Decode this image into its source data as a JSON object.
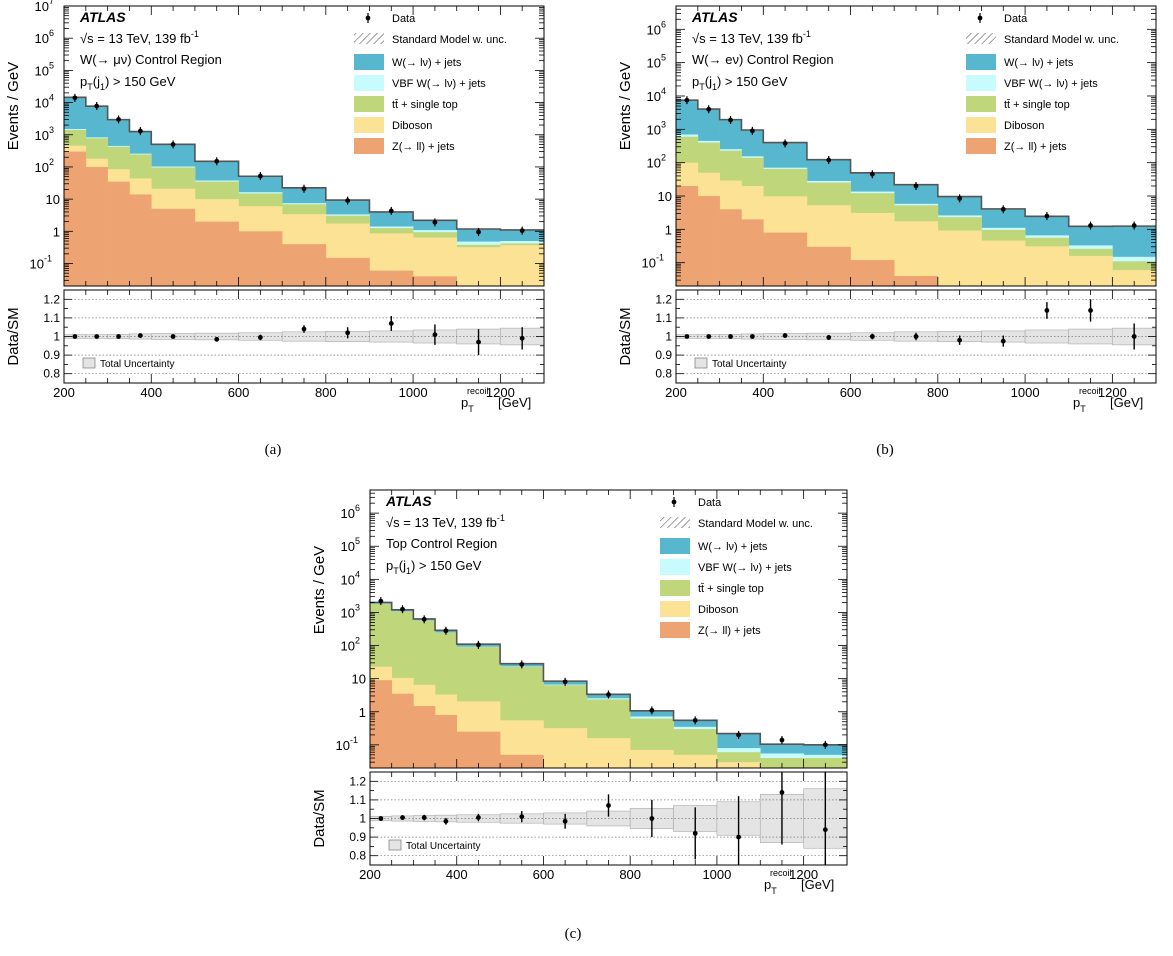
{
  "chart_data": [
    {
      "type": "stacked-histogram",
      "caption": "(a)",
      "experiment": "ATLAS",
      "energy_text": "√s = 13 TeV, 139 fb",
      "energy_sup": "-1",
      "region": "W(→ μν) Control Region",
      "cut": "p_T(j_1) > 150 GeV",
      "ylabel": "Events / GeV",
      "ratio_ylabel": "Data/SM",
      "xlabel": "p_T^recoil [GeV]",
      "xlim": [
        200,
        1300
      ],
      "ylim": [
        0.02,
        10000000
      ],
      "ratio_ylim": [
        0.75,
        1.25
      ],
      "uncertainty_label": "Total Uncertainty",
      "bin_edges": [
        200,
        250,
        300,
        350,
        400,
        500,
        600,
        700,
        800,
        900,
        1000,
        1100,
        1200,
        1300
      ],
      "series": [
        {
          "name": "Z(→ ll) + jets",
          "values": [
            300,
            100,
            35,
            14,
            5,
            2,
            1,
            0.4,
            0.15,
            0.06,
            0.04,
            0.02,
            0.02
          ]
        },
        {
          "name": "Diboson",
          "values": [
            160,
            80,
            50,
            30,
            16,
            8,
            5,
            3,
            1.6,
            0.8,
            0.6,
            0.3,
            0.35
          ]
        },
        {
          "name": "tt̄ + single top",
          "values": [
            950,
            600,
            340,
            200,
            75,
            25,
            9,
            3.5,
            1.3,
            0.4,
            0.3,
            0.06,
            0.05
          ]
        },
        {
          "name": "VBF W(→ lν) + jets",
          "values": [
            100,
            50,
            25,
            15,
            7,
            3,
            1.4,
            0.6,
            0.3,
            0.15,
            0.15,
            0.1,
            0.08
          ]
        },
        {
          "name": "W(→ lν) + jets",
          "values": [
            13000,
            6900,
            2500,
            1000,
            400,
            112,
            35,
            15,
            6,
            2.6,
            1.1,
            0.7,
            0.6
          ]
        }
      ],
      "data": {
        "x": [
          225,
          275,
          325,
          375,
          450,
          550,
          650,
          750,
          850,
          950,
          1050,
          1150,
          1250
        ],
        "values": [
          14000,
          7800,
          3000,
          1300,
          500,
          150,
          52,
          21,
          9,
          4.3,
          1.9,
          0.95,
          1.05
        ]
      },
      "ratio": {
        "values": [
          1.0,
          1.0,
          1.0,
          1.005,
          1.0,
          0.985,
          0.995,
          1.04,
          1.02,
          1.07,
          1.01,
          0.97,
          0.99
        ],
        "errors": [
          0.005,
          0.005,
          0.006,
          0.008,
          0.01,
          0.012,
          0.015,
          0.02,
          0.03,
          0.04,
          0.055,
          0.07,
          0.06
        ],
        "unc": [
          0.01,
          0.01,
          0.012,
          0.014,
          0.016,
          0.018,
          0.02,
          0.025,
          0.028,
          0.03,
          0.035,
          0.04,
          0.045
        ]
      },
      "legend": {
        "data": "Data",
        "sm": "Standard Model w. unc."
      }
    },
    {
      "type": "stacked-histogram",
      "caption": "(b)",
      "experiment": "ATLAS",
      "energy_text": "√s = 13 TeV, 139 fb",
      "energy_sup": "-1",
      "region": "W(→ eν) Control Region",
      "cut": "p_T(j_1) > 150 GeV",
      "ylabel": "Events / GeV",
      "ratio_ylabel": "Data/SM",
      "xlabel": "p_T^recoil [GeV]",
      "xlim": [
        200,
        1300
      ],
      "ylim": [
        0.02,
        5000000
      ],
      "ratio_ylim": [
        0.75,
        1.25
      ],
      "uncertainty_label": "Total Uncertainty",
      "bin_edges": [
        200,
        250,
        300,
        350,
        400,
        500,
        600,
        700,
        800,
        900,
        1000,
        1100,
        1200,
        1300
      ],
      "series": [
        {
          "name": "Z(→ ll) + jets",
          "values": [
            20,
            10,
            4,
            2,
            0.8,
            0.3,
            0.12,
            0.04,
            0.02,
            0.01,
            0.01,
            0.01,
            0.01
          ]
        },
        {
          "name": "Diboson",
          "values": [
            80,
            40,
            25,
            18,
            9,
            5,
            3,
            1.7,
            0.9,
            0.45,
            0.3,
            0.15,
            0.05
          ]
        },
        {
          "name": "tt̄ + single top",
          "values": [
            500,
            350,
            200,
            120,
            55,
            20,
            9,
            3.5,
            1.4,
            0.5,
            0.25,
            0.1,
            0.05
          ]
        },
        {
          "name": "VBF W(→ lν) + jets",
          "values": [
            100,
            50,
            25,
            15,
            6,
            3,
            1.5,
            0.6,
            0.3,
            0.15,
            0.1,
            0.07,
            0.04
          ]
        },
        {
          "name": "W(→ lν) + jets",
          "values": [
            6800,
            3600,
            1700,
            800,
            330,
            95,
            36,
            16,
            7,
            3,
            1.8,
            0.9,
            1.1
          ]
        }
      ],
      "data": {
        "x": [
          225,
          275,
          325,
          375,
          450,
          550,
          650,
          750,
          850,
          950,
          1050,
          1150,
          1250
        ],
        "values": [
          7500,
          4000,
          1900,
          900,
          380,
          120,
          45,
          20,
          8.5,
          4.0,
          2.5,
          1.3,
          1.3
        ]
      },
      "ratio": {
        "values": [
          1.0,
          1.0,
          1.0,
          1.0,
          1.005,
          0.995,
          1.0,
          1.0,
          0.98,
          0.975,
          1.14,
          1.14,
          1.0
        ],
        "errors": [
          0.005,
          0.006,
          0.007,
          0.008,
          0.01,
          0.012,
          0.015,
          0.02,
          0.025,
          0.03,
          0.045,
          0.06,
          0.07
        ],
        "unc": [
          0.01,
          0.01,
          0.012,
          0.014,
          0.016,
          0.018,
          0.02,
          0.025,
          0.028,
          0.03,
          0.035,
          0.04,
          0.045
        ]
      },
      "legend": {
        "data": "Data",
        "sm": "Standard Model w. unc."
      }
    },
    {
      "type": "stacked-histogram",
      "caption": "(c)",
      "experiment": "ATLAS",
      "energy_text": "√s = 13 TeV, 139 fb",
      "energy_sup": "-1",
      "region": "Top Control Region",
      "cut": "p_T(j_1) > 150 GeV",
      "ylabel": "Events / GeV",
      "ratio_ylabel": "Data/SM",
      "xlabel": "p_T^recoil [GeV]",
      "xlim": [
        200,
        1300
      ],
      "ylim": [
        0.02,
        5000000
      ],
      "ratio_ylim": [
        0.75,
        1.25
      ],
      "uncertainty_label": "Total Uncertainty",
      "bin_edges": [
        200,
        250,
        300,
        350,
        400,
        500,
        600,
        700,
        800,
        900,
        1000,
        1100,
        1200,
        1300
      ],
      "series": [
        {
          "name": "Z(→ ll) + jets",
          "values": [
            9,
            3.5,
            1.5,
            0.8,
            0.25,
            0.05,
            0.02,
            0.01,
            0.01,
            0.01,
            0.01,
            0.01,
            0.01
          ]
        },
        {
          "name": "Diboson",
          "values": [
            14,
            7,
            5,
            2.5,
            1.8,
            0.5,
            0.3,
            0.15,
            0.06,
            0.04,
            0.02,
            0.01,
            0.01
          ]
        },
        {
          "name": "tt̄ + single top",
          "values": [
            1770,
            1050,
            560,
            240,
            88,
            22,
            6,
            2.2,
            0.55,
            0.25,
            0.03,
            0.02,
            0.02
          ]
        },
        {
          "name": "VBF W(→ lν) + jets",
          "values": [
            30,
            20,
            10,
            5,
            2,
            0.8,
            0.3,
            0.2,
            0.1,
            0.05,
            0.02,
            0.015,
            0.01
          ]
        },
        {
          "name": "W(→ lν) + jets",
          "values": [
            180,
            120,
            60,
            40,
            18,
            5,
            1.8,
            0.8,
            0.35,
            0.2,
            0.14,
            0.05,
            0.05
          ]
        }
      ],
      "data": {
        "x": [
          225,
          275,
          325,
          375,
          450,
          550,
          650,
          750,
          850,
          950,
          1050,
          1150,
          1250
        ],
        "values": [
          2200,
          1250,
          620,
          280,
          105,
          27,
          8,
          3.3,
          1.1,
          0.55,
          0.2,
          0.14,
          0.1
        ]
      },
      "ratio": {
        "values": [
          1.0,
          1.005,
          1.005,
          0.985,
          1.005,
          1.01,
          0.985,
          1.07,
          1.0,
          0.92,
          0.9,
          1.14,
          0.94
        ],
        "errors": [
          0.01,
          0.012,
          0.015,
          0.018,
          0.02,
          0.03,
          0.04,
          0.06,
          0.1,
          0.14,
          0.22,
          0.28,
          0.35
        ],
        "unc": [
          0.012,
          0.014,
          0.016,
          0.018,
          0.02,
          0.025,
          0.03,
          0.04,
          0.055,
          0.07,
          0.09,
          0.13,
          0.16
        ]
      },
      "legend": {
        "data": "Data",
        "sm": "Standard Model w. unc."
      }
    }
  ],
  "colors": {
    "w_jets": "#57b7cf",
    "vbf_w": "#c8fbfd",
    "top": "#bfd77a",
    "diboson": "#fce295",
    "z_jets": "#eea472",
    "uncertainty_fill": "#e4e4e4",
    "sm_line": "#555555"
  }
}
